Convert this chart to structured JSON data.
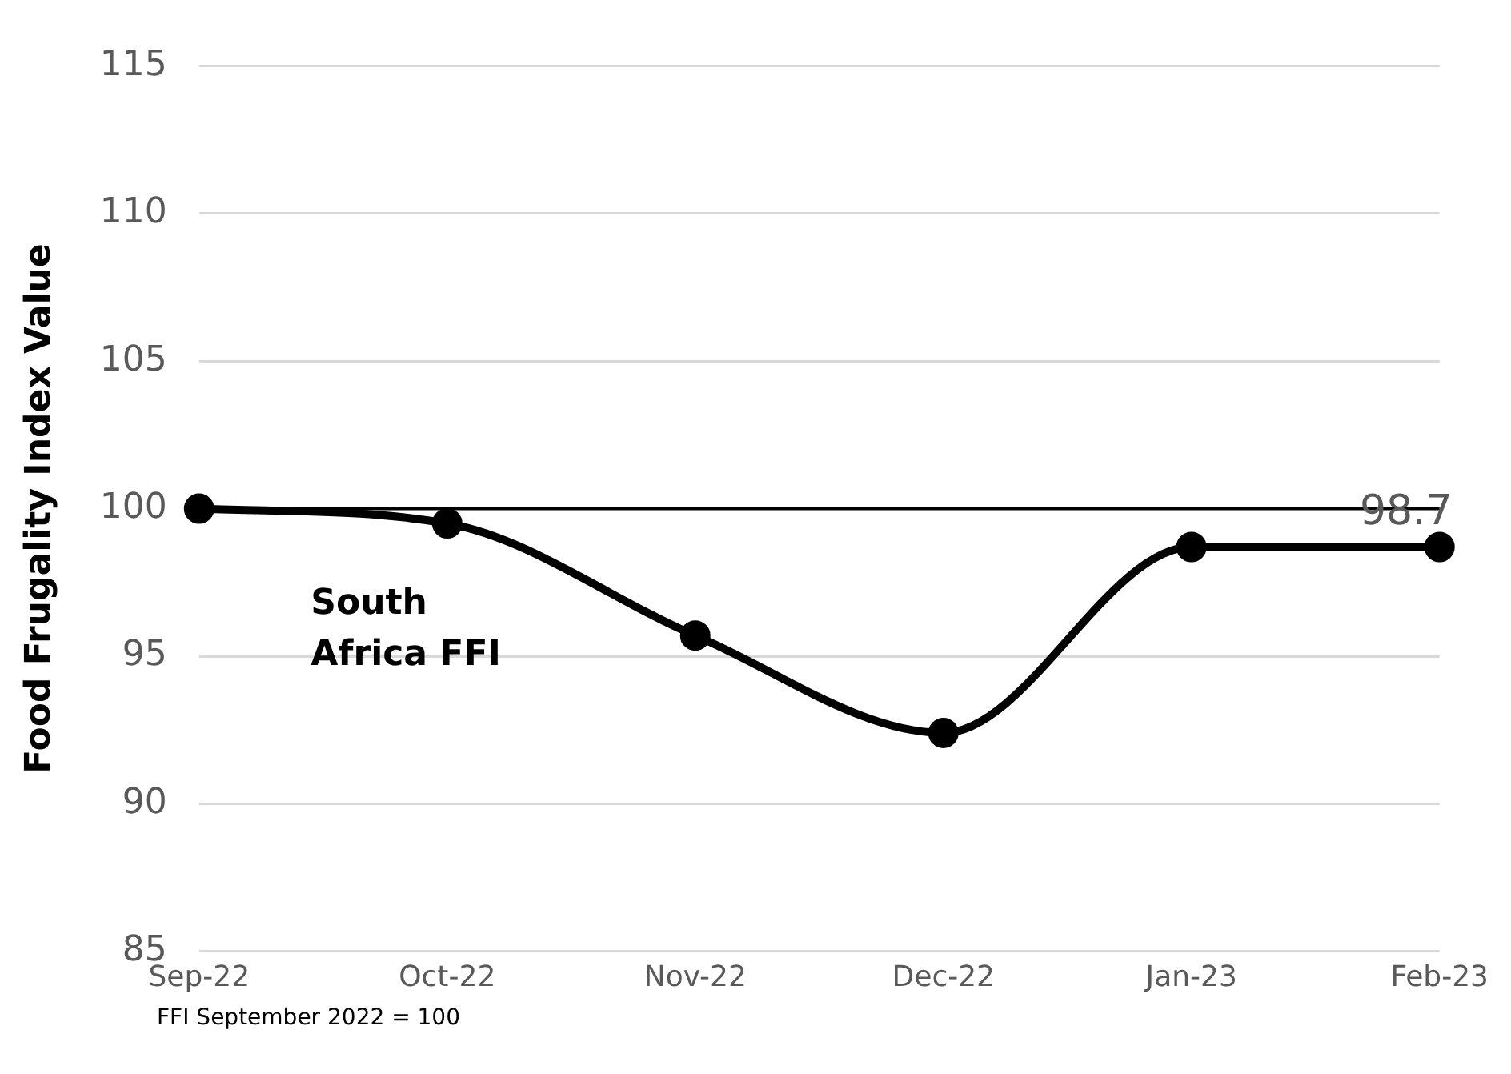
{
  "chart_data": {
    "type": "line",
    "ylabel": "Food Frugality Index Value",
    "categories": [
      "Sep-22",
      "Oct-22",
      "Nov-22",
      "Dec-22",
      "Jan-23",
      "Feb-23"
    ],
    "series": [
      {
        "name": "South Africa FFI",
        "color": "#000000",
        "values": [
          100,
          99.5,
          95.7,
          92.4,
          98.7,
          98.7
        ],
        "value_labels": [
          null,
          null,
          null,
          null,
          null,
          "98.7"
        ]
      }
    ],
    "ylim": [
      85,
      115
    ],
    "yticks": [
      85,
      90,
      95,
      100,
      105,
      110,
      115
    ],
    "grid": "y",
    "legend": false,
    "marker": "circle",
    "line_style": "solid",
    "ref_lines": [
      {
        "axis": "y",
        "value": 100,
        "color": "#000000"
      }
    ],
    "annotations": [
      "FFI September 2022 = 100"
    ]
  }
}
